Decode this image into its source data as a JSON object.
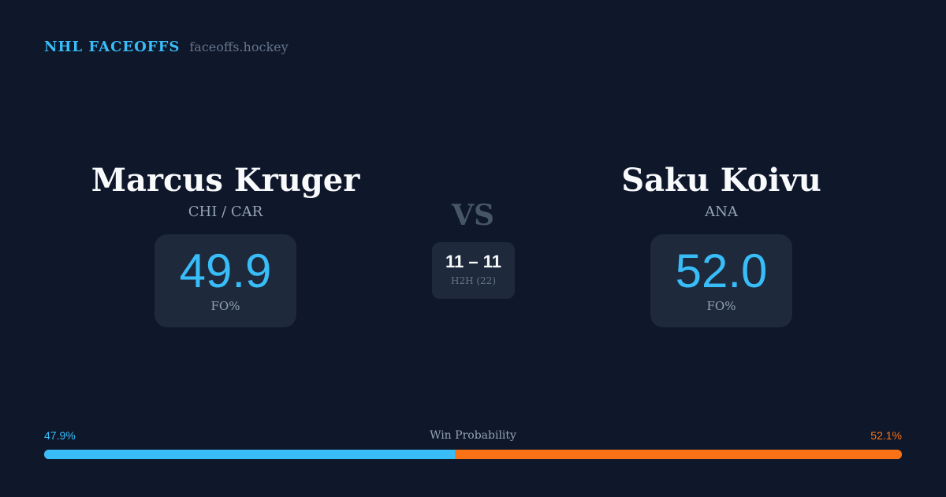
{
  "brand": {
    "title": "NHL FACEOFFS",
    "url": "faceoffs.hockey"
  },
  "left": {
    "name": "Marcus Kruger",
    "team": "CHI / CAR",
    "fo_pct": "49.9",
    "fo_label": "FO%"
  },
  "right": {
    "name": "Saku Koivu",
    "team": "ANA",
    "fo_pct": "52.0",
    "fo_label": "FO%"
  },
  "vs": "VS",
  "h2h": {
    "score": "11 – 11",
    "label": "H2H (22)"
  },
  "win_probability": {
    "label": "Win Probability",
    "left_text": "47.9%",
    "right_text": "52.1%",
    "left": 47.9,
    "right": 52.1,
    "left_color": "#38bdf8",
    "right_color": "#f97316"
  }
}
